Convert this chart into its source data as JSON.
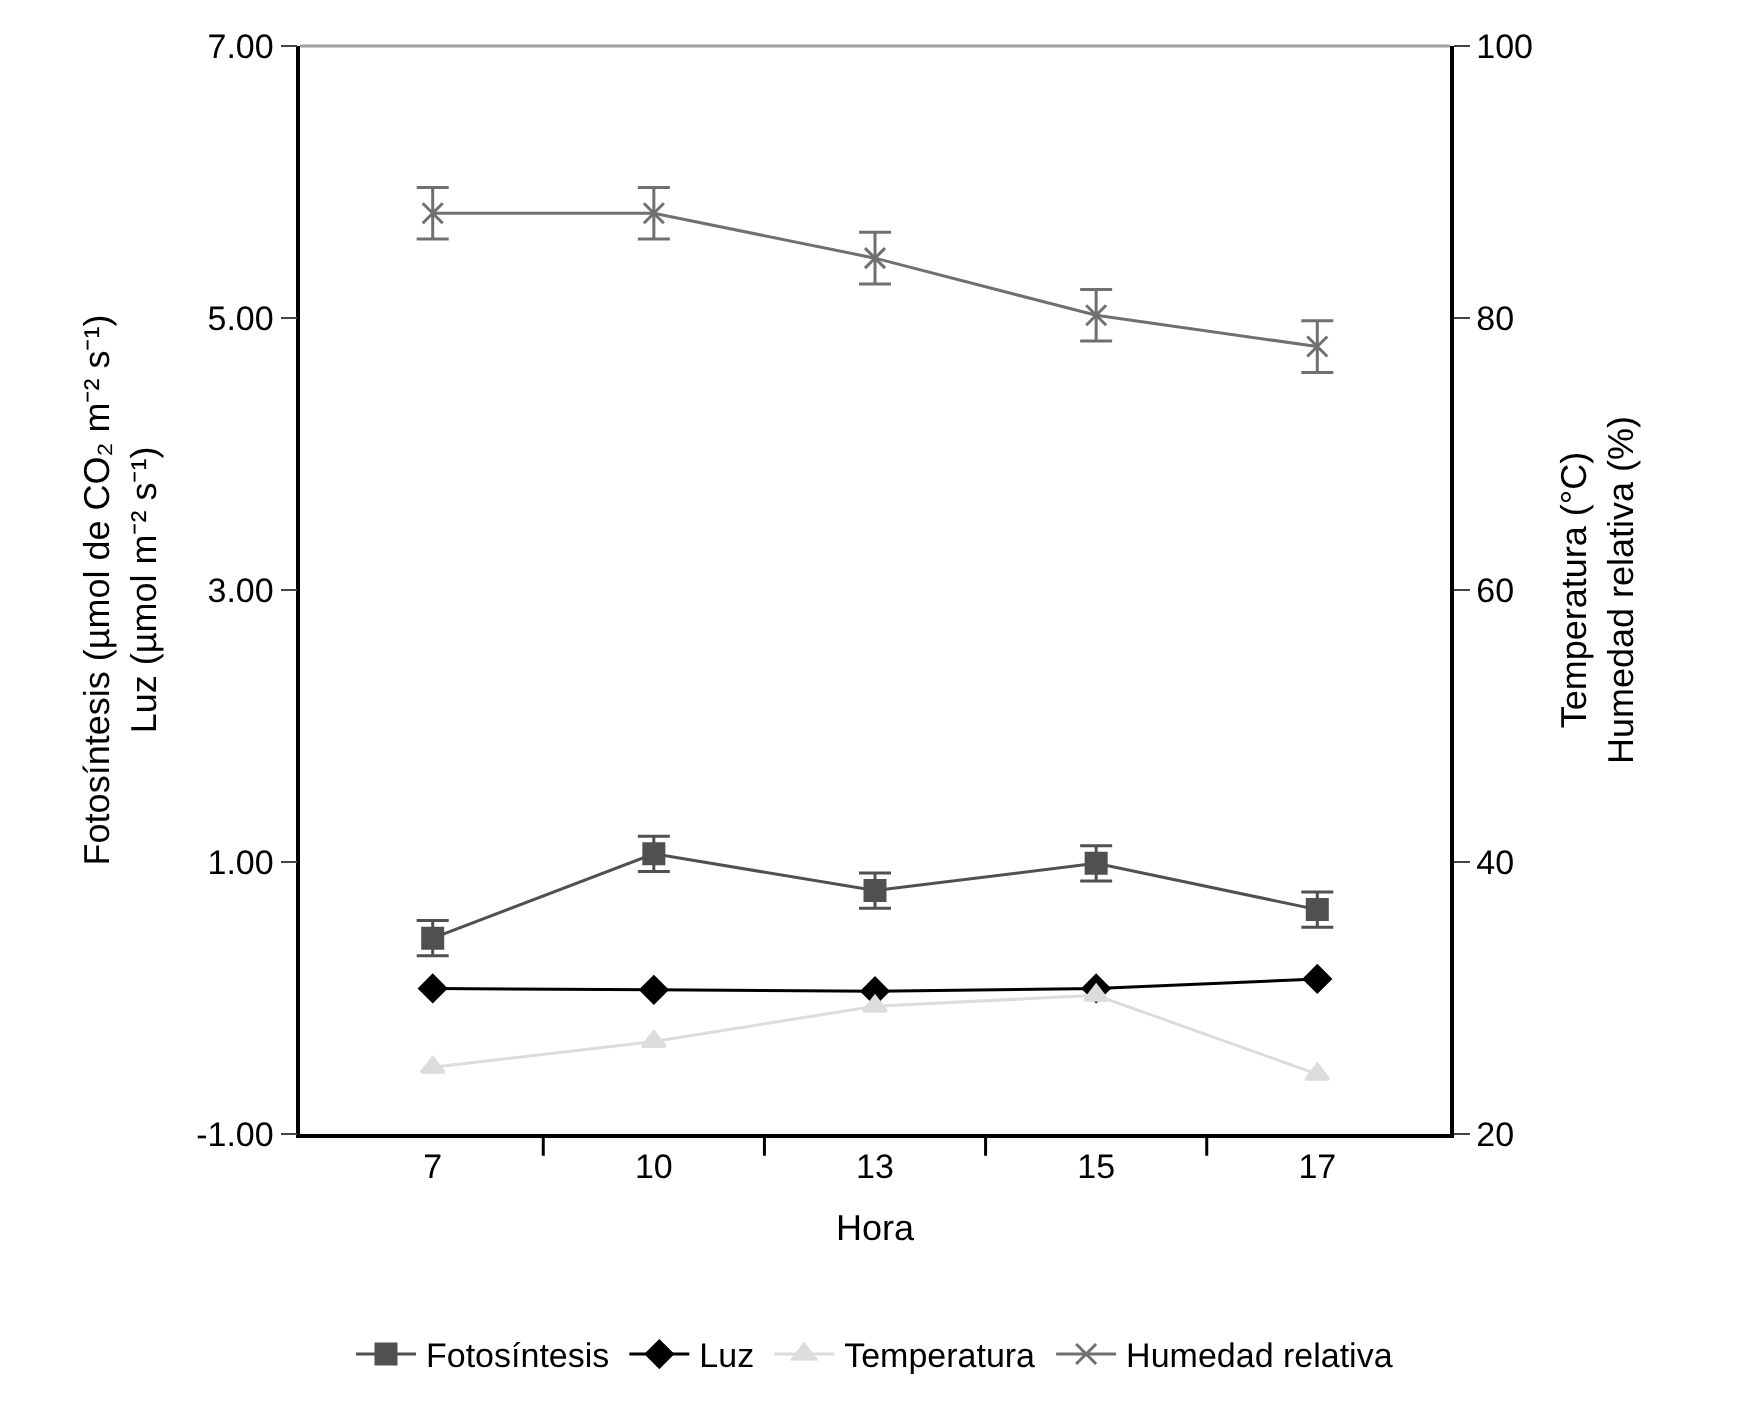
{
  "chart_data": {
    "type": "line",
    "xlabel": "Hora",
    "ylabel": "Fotosíntesis (µmol de CO₂ m⁻² s⁻¹)\nLuz (µmol m⁻² s⁻¹)",
    "y2label": "Temperatura (°C)\nHumedad relativa (%)",
    "categories": [
      "7",
      "10",
      "13",
      "15",
      "17"
    ],
    "ylim": [
      -1,
      7
    ],
    "yticks": [
      {
        "value": -1,
        "label": "-1.00"
      },
      {
        "value": 1,
        "label": "1.00"
      },
      {
        "value": 3,
        "label": "3.00"
      },
      {
        "value": 5,
        "label": "5.00"
      },
      {
        "value": 7,
        "label": "7.00"
      }
    ],
    "y2lim": [
      20,
      100
    ],
    "y2ticks": [
      20,
      40,
      60,
      80,
      100
    ],
    "series": [
      {
        "name": "Fotosíntesis",
        "color": "#505050",
        "marker": "square",
        "values": [
          0.44,
          1.06,
          0.79,
          0.99,
          0.65
        ],
        "errors": [
          0.13,
          0.13,
          0.13,
          0.13,
          0.13
        ]
      },
      {
        "name": "Luz",
        "color": "#000000",
        "marker": "diamond",
        "values": [
          0.07,
          0.06,
          0.05,
          0.07,
          0.14
        ]
      },
      {
        "name": "Temperatura",
        "color": "#dcdcdc",
        "marker": "triangle",
        "axis": "y2",
        "values": [
          24.9,
          26.8,
          29.4,
          30.2,
          24.4
        ]
      },
      {
        "name": "Humedad relativa",
        "color": "#707070",
        "marker": "cross",
        "axis": "y2",
        "values": [
          87.7,
          87.7,
          84.4,
          80.2,
          77.9
        ],
        "errors": [
          1.9,
          1.9,
          1.9,
          1.9,
          1.9
        ]
      }
    ],
    "legend": "bottom",
    "line_style": "solid"
  }
}
